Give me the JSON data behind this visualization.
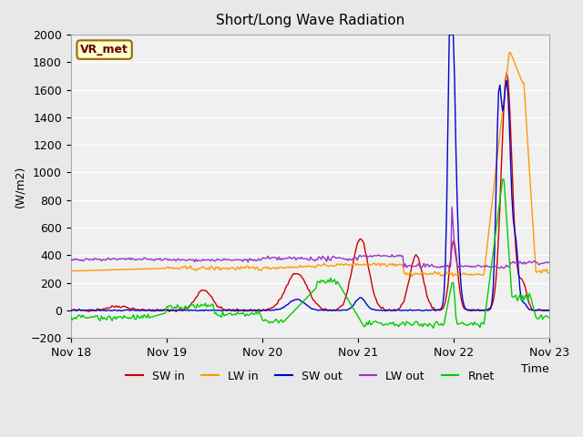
{
  "title": "Short/Long Wave Radiation",
  "ylabel": "(W/m2)",
  "xlabel": "Time",
  "ylim": [
    -200,
    2000
  ],
  "xlim": [
    0,
    360
  ],
  "tick_positions": [
    0,
    72,
    144,
    216,
    288,
    360
  ],
  "tick_labels": [
    "Nov 18",
    "Nov 19",
    "Nov 20",
    "Nov 21",
    "Nov 22",
    "Nov 23"
  ],
  "legend_labels": [
    "SW in",
    "LW in",
    "SW out",
    "LW out",
    "Rnet"
  ],
  "legend_colors": [
    "#cc0000",
    "#ff9900",
    "#0000cc",
    "#9933cc",
    "#00cc00"
  ],
  "station_label": "VR_met",
  "background_color": "#e8e8e8",
  "plot_bg_color": "#f0f0f0",
  "grid_color": "#ffffff"
}
